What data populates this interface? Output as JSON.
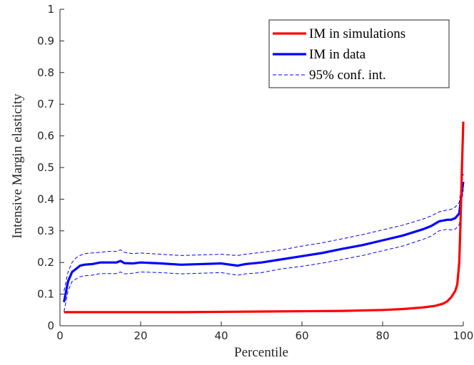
{
  "chart_data": {
    "type": "line",
    "title": "",
    "xlabel": "Percentile",
    "ylabel": "Intensive Margin elasticity",
    "xlim": [
      0,
      100
    ],
    "ylim": [
      0,
      1
    ],
    "xticks": [
      0,
      20,
      40,
      60,
      80,
      100
    ],
    "yticks": [
      0,
      0.1,
      0.2,
      0.3,
      0.4,
      0.5,
      0.6,
      0.7,
      0.8,
      0.9,
      1
    ],
    "ytick_labels": [
      "0",
      "0.1",
      "0.2",
      "0.3",
      "0.4",
      "0.5",
      "0.6",
      "0.7",
      "0.8",
      "0.9",
      "1"
    ],
    "grid": false,
    "legend_position": "top-right",
    "series": [
      {
        "name": "IM in simulations",
        "color": "#ff0000",
        "style": "solid",
        "x": [
          1,
          10,
          20,
          30,
          40,
          50,
          60,
          70,
          80,
          85,
          90,
          93,
          95,
          96,
          97,
          98,
          98.5,
          99,
          99.3,
          99.6,
          100
        ],
        "y": [
          0.043,
          0.043,
          0.043,
          0.043,
          0.044,
          0.045,
          0.046,
          0.047,
          0.05,
          0.053,
          0.058,
          0.063,
          0.07,
          0.077,
          0.09,
          0.11,
          0.13,
          0.2,
          0.32,
          0.47,
          0.645
        ]
      },
      {
        "name": "IM in data",
        "color": "#0000ff",
        "style": "solid",
        "x": [
          1,
          2,
          3,
          4,
          5,
          6,
          8,
          10,
          12,
          14,
          15,
          16,
          18,
          20,
          25,
          30,
          35,
          40,
          44,
          46,
          50,
          55,
          60,
          65,
          70,
          75,
          80,
          85,
          90,
          92,
          94,
          96,
          97,
          98,
          99,
          99.5,
          100
        ],
        "y": [
          0.075,
          0.14,
          0.17,
          0.18,
          0.19,
          0.193,
          0.195,
          0.2,
          0.2,
          0.2,
          0.205,
          0.198,
          0.197,
          0.2,
          0.197,
          0.193,
          0.195,
          0.197,
          0.19,
          0.195,
          0.2,
          0.21,
          0.22,
          0.23,
          0.243,
          0.255,
          0.27,
          0.285,
          0.305,
          0.315,
          0.33,
          0.335,
          0.335,
          0.34,
          0.355,
          0.41,
          0.455
        ]
      },
      {
        "name": "95% conf. int.",
        "color": "#0000ff",
        "style": "dashed",
        "x": [
          1,
          2,
          3,
          4,
          5,
          6,
          8,
          10,
          12,
          14,
          15,
          16,
          18,
          20,
          25,
          30,
          35,
          40,
          44,
          46,
          50,
          55,
          60,
          65,
          70,
          75,
          80,
          85,
          90,
          92,
          94,
          96,
          97,
          98,
          99,
          99.5,
          100
        ],
        "y": [
          0.11,
          0.17,
          0.2,
          0.215,
          0.222,
          0.228,
          0.23,
          0.232,
          0.235,
          0.235,
          0.24,
          0.232,
          0.228,
          0.23,
          0.226,
          0.222,
          0.224,
          0.226,
          0.222,
          0.226,
          0.232,
          0.24,
          0.252,
          0.262,
          0.275,
          0.288,
          0.303,
          0.318,
          0.337,
          0.347,
          0.36,
          0.366,
          0.368,
          0.375,
          0.39,
          0.44,
          0.48
        ]
      },
      {
        "name": "",
        "color": "#0000ff",
        "style": "dashed",
        "x": [
          1,
          2,
          3,
          4,
          5,
          6,
          8,
          10,
          12,
          14,
          15,
          16,
          18,
          20,
          25,
          30,
          35,
          40,
          44,
          46,
          50,
          55,
          60,
          65,
          70,
          75,
          80,
          85,
          90,
          92,
          94,
          96,
          97,
          98,
          99,
          99.5,
          100
        ],
        "y": [
          0.045,
          0.11,
          0.14,
          0.148,
          0.155,
          0.158,
          0.16,
          0.165,
          0.165,
          0.165,
          0.17,
          0.164,
          0.166,
          0.17,
          0.168,
          0.164,
          0.166,
          0.168,
          0.16,
          0.164,
          0.168,
          0.18,
          0.188,
          0.198,
          0.21,
          0.222,
          0.237,
          0.252,
          0.273,
          0.283,
          0.3,
          0.305,
          0.303,
          0.305,
          0.32,
          0.38,
          0.43
        ]
      }
    ]
  }
}
